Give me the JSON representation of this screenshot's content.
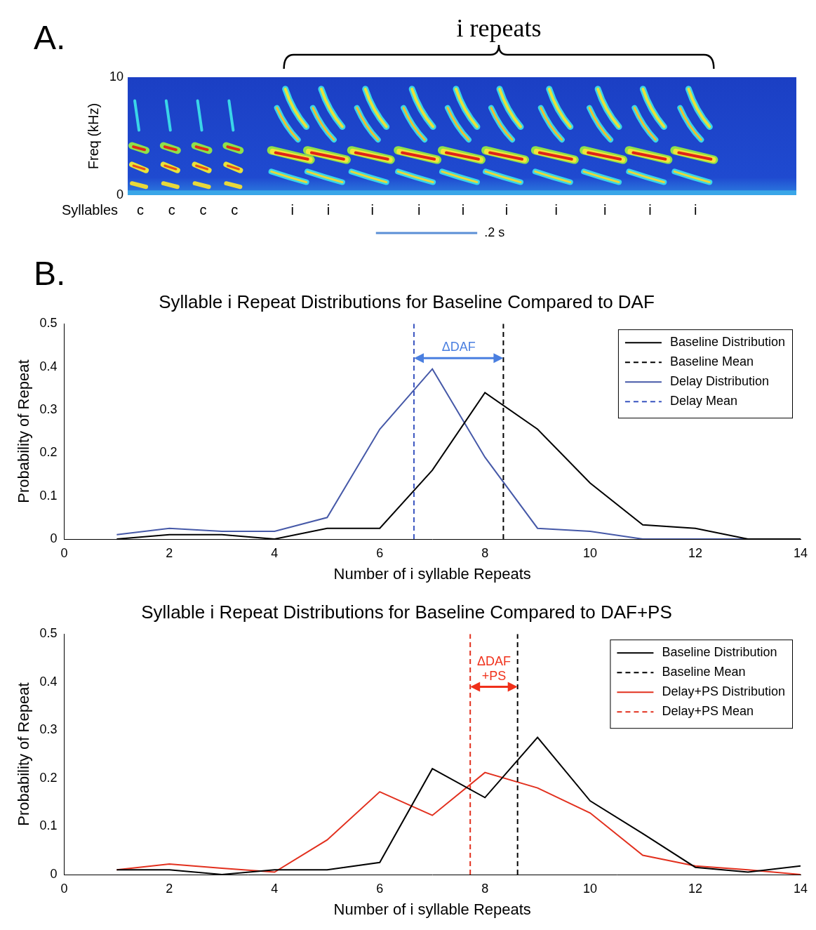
{
  "chart_data": [
    {
      "type": "spectrogram",
      "panel": "A.",
      "y_label": "Freq (kHz)",
      "ylim": [
        0,
        10
      ],
      "yticks": [
        0,
        10
      ],
      "xlim": [
        0,
        1.32
      ],
      "tick_labels": "y",
      "row_label": "Syllables",
      "syllables": [
        {
          "label": "c",
          "time": 0.025
        },
        {
          "label": "c",
          "time": 0.087
        },
        {
          "label": "c",
          "time": 0.149
        },
        {
          "label": "c",
          "time": 0.211
        },
        {
          "label": "i",
          "time": 0.325
        },
        {
          "label": "i",
          "time": 0.396
        },
        {
          "label": "i",
          "time": 0.483
        },
        {
          "label": "i",
          "time": 0.575
        },
        {
          "label": "i",
          "time": 0.662
        },
        {
          "label": "i",
          "time": 0.748
        },
        {
          "label": "i",
          "time": 0.846
        },
        {
          "label": "i",
          "time": 0.942
        },
        {
          "label": "i",
          "time": 1.031
        },
        {
          "label": "i",
          "time": 1.121
        }
      ],
      "annotation": {
        "text": "i repeats",
        "syllable": "i"
      },
      "scale_bar": {
        "value": 0.2,
        "label": ".2 s",
        "start": 0.49
      }
    },
    {
      "type": "line",
      "panel": "B.",
      "title": "Syllable i Repeat Distributions for Baseline Compared to DAF",
      "x_label": "Number of i syllable Repeats",
      "y_label": "Probability of Repeat",
      "x": [
        1,
        2,
        3,
        4,
        5,
        6,
        7,
        8,
        9,
        10,
        11,
        12,
        13,
        14
      ],
      "xlim": [
        0,
        14
      ],
      "xticks": [
        0,
        2,
        4,
        6,
        8,
        10,
        12,
        14
      ],
      "ylim": [
        0,
        0.5
      ],
      "yticks": [
        0,
        0.1,
        0.2,
        0.3,
        0.4,
        0.5
      ],
      "grid": false,
      "legend": "top-right",
      "series": [
        {
          "name": "Baseline Distribution",
          "color": "#000000",
          "line_style": "solid",
          "values": [
            0,
            0.01,
            0.01,
            0,
            0.025,
            0.025,
            0.16,
            0.34,
            0.255,
            0.13,
            0.033,
            0.025,
            0,
            0
          ]
        },
        {
          "name": "Baseline Mean",
          "type": "vline",
          "color": "#000000",
          "line_style": "dashed",
          "x": 8.35
        },
        {
          "name": "Delay Distribution",
          "color": "#4659a8",
          "line_style": "solid",
          "values": [
            0.01,
            0.025,
            0.018,
            0.018,
            0.05,
            0.255,
            0.395,
            0.19,
            0.025,
            0.018,
            0,
            0,
            0,
            0
          ]
        },
        {
          "name": "Delay Mean",
          "type": "vline",
          "color": "#3a55c0",
          "line_style": "dashed",
          "x": 6.65
        }
      ],
      "annotation": {
        "text": "ΔDAF",
        "y": 0.42,
        "color": "#4a7fe0"
      }
    },
    {
      "type": "line",
      "title": "Syllable i Repeat Distributions for Baseline Compared to DAF+PS",
      "x_label": "Number of i syllable Repeats",
      "y_label": "Probability of Repeat",
      "x": [
        1,
        2,
        3,
        4,
        5,
        6,
        7,
        8,
        9,
        10,
        11,
        12,
        13,
        14
      ],
      "xlim": [
        0,
        14
      ],
      "xticks": [
        0,
        2,
        4,
        6,
        8,
        10,
        12,
        14
      ],
      "ylim": [
        0,
        0.5
      ],
      "yticks": [
        0,
        0.1,
        0.2,
        0.3,
        0.4,
        0.5
      ],
      "grid": false,
      "legend": "top-right",
      "series": [
        {
          "name": "Baseline Distribution",
          "color": "#000000",
          "line_style": "solid",
          "values": [
            0.01,
            0.01,
            0,
            0.01,
            0.01,
            0.025,
            0.22,
            0.16,
            0.285,
            0.153,
            0.085,
            0.015,
            0.005,
            0.018
          ]
        },
        {
          "name": "Baseline Mean",
          "type": "vline",
          "color": "#000000",
          "line_style": "dashed",
          "x": 8.62
        },
        {
          "name": "Delay+PS Distribution",
          "color": "#e2301e",
          "line_style": "solid",
          "values": [
            0.01,
            0.022,
            0.013,
            0.005,
            0.072,
            0.172,
            0.123,
            0.212,
            0.18,
            0.128,
            0.04,
            0.018,
            0.01,
            0
          ]
        },
        {
          "name": "Delay+PS Mean",
          "type": "vline",
          "color": "#e2301e",
          "line_style": "dashed",
          "x": 7.72
        }
      ],
      "annotation": {
        "text": "ΔDAF\n+PS",
        "y": 0.39,
        "color": "#f0301a"
      }
    }
  ]
}
